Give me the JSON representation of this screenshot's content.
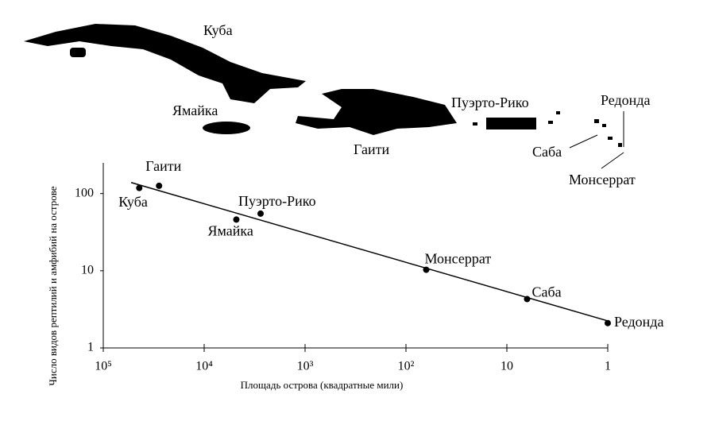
{
  "map": {
    "labels": [
      "Куба",
      "Ямайка",
      "Гаити",
      "Пуэрто-Рико",
      "Редонда",
      "Саба",
      "Монсеррат"
    ]
  },
  "chart_data": {
    "type": "scatter",
    "x_label": "Площадь острова (квадратные мили)",
    "y_label": "Число видов рептилий и амфибий на острове",
    "labels": [
      "Куба",
      "Гаити",
      "Ямайка",
      "Пуэрто-Рико",
      "Монсеррат",
      "Саба",
      "Редонда"
    ],
    "x": [
      44000,
      28000,
      4800,
      2760,
      63,
      6.3,
      1
    ],
    "values": [
      118,
      126,
      46,
      55,
      10.3,
      4.3,
      2.1
    ],
    "color": "#000000",
    "trend": {
      "x": [
        53000,
        1
      ],
      "values": [
        139,
        2.24
      ]
    },
    "log_x": true,
    "log_y": true,
    "xlim": [
      100000,
      1
    ],
    "ylim": [
      1,
      250
    ],
    "xticks": [
      {
        "value": 100000,
        "label": "10⁵"
      },
      {
        "value": 10000,
        "label": "10⁴"
      },
      {
        "value": 1000,
        "label": "10³"
      },
      {
        "value": 100,
        "label": "10²"
      },
      10,
      1
    ],
    "yticks": [
      1,
      10,
      100
    ]
  }
}
